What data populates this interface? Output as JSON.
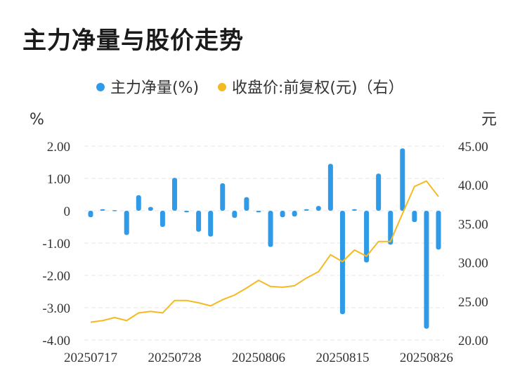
{
  "title": "主力净量与股价走势",
  "chart_data": {
    "type": "bar",
    "legend": {
      "placement": "top-center",
      "items": [
        {
          "label": "主力净量(%)",
          "color": "#2f9be8"
        },
        {
          "label": "收盘价:前复权(元)（右）",
          "color": "#f5b921"
        }
      ]
    },
    "y_left": {
      "unit": "%",
      "min": -4,
      "max": 2,
      "ticks": [
        "2.00",
        "1.00",
        "0",
        "-1.00",
        "-2.00",
        "-3.00",
        "-4.00"
      ]
    },
    "y_right": {
      "unit": "元",
      "min": 20,
      "max": 45,
      "ticks": [
        "45.00",
        "40.00",
        "35.00",
        "30.00",
        "25.00",
        "20.00"
      ]
    },
    "x_tick_labels": [
      "20250717",
      "20250728",
      "20250806",
      "20250815",
      "20250826"
    ],
    "x_tick_indices": [
      0,
      7,
      14,
      21,
      28
    ],
    "grid": true,
    "series": [
      {
        "name": "主力净量(%)",
        "kind": "bar",
        "axis": "left",
        "color": "#2f9be8",
        "values": [
          -0.2,
          0.05,
          0.02,
          -0.75,
          0.48,
          0.12,
          -0.5,
          1.02,
          -0.05,
          -0.65,
          -0.8,
          0.85,
          -0.22,
          0.42,
          -0.05,
          -1.12,
          -0.2,
          -0.18,
          0.05,
          0.15,
          1.45,
          -3.2,
          0.05,
          -1.6,
          1.15,
          -1.05,
          1.93,
          -0.35,
          -3.65,
          -1.2
        ]
      },
      {
        "name": "收盘价:前复权(元)（右）",
        "kind": "line",
        "axis": "right",
        "color": "#f5b921",
        "values": [
          22.3,
          22.5,
          22.9,
          22.5,
          23.5,
          23.7,
          23.5,
          25.1,
          25.1,
          24.8,
          24.4,
          25.2,
          25.8,
          26.7,
          27.7,
          26.9,
          26.8,
          27.0,
          28.0,
          28.8,
          31.0,
          30.1,
          31.6,
          30.8,
          32.7,
          32.7,
          36.3,
          39.8,
          40.5,
          38.5
        ]
      }
    ]
  }
}
